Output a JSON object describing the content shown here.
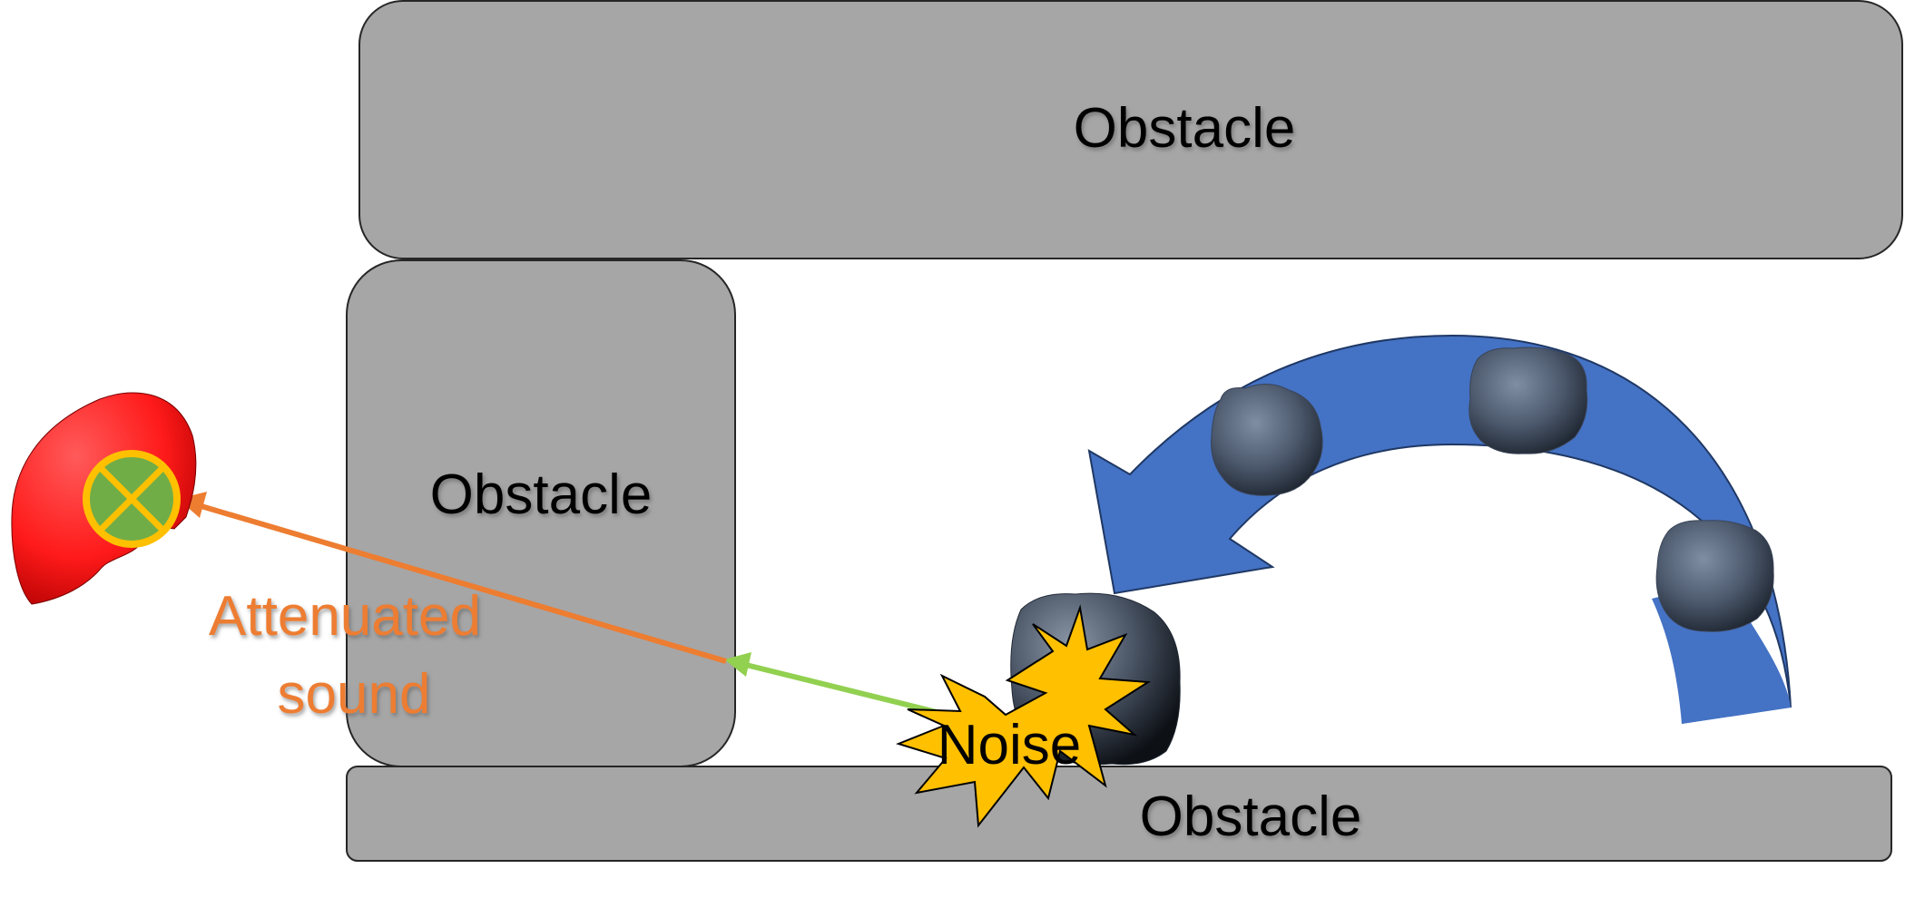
{
  "diagram": {
    "obstacles": [
      {
        "id": "top",
        "label": "Obstacle"
      },
      {
        "id": "middle",
        "label": "Obstacle"
      },
      {
        "id": "bottom",
        "label": "Obstacle"
      }
    ],
    "noise_label": "Noise",
    "attenuated_label_line1": "Attenuated",
    "attenuated_label_line2": "sound"
  },
  "colors": {
    "obstacle_fill": "#a6a6a6",
    "obstacle_stroke": "#262626",
    "arc_arrow_fill": "#4472c4",
    "attenuated_arrow": "#ed7d31",
    "direct_arrow": "#92d050",
    "noise_burst": "#ffc000",
    "listener_head": "#ff1a1a",
    "listener_marker_fill": "#70ad47",
    "listener_marker_ring": "#ffc000",
    "rock": "#4a5568"
  },
  "icons": {
    "listener": "listener-head-icon",
    "listener_marker": "cross-circle-marker-icon",
    "rock": "rock-icon",
    "noise": "noise-burst-icon"
  }
}
